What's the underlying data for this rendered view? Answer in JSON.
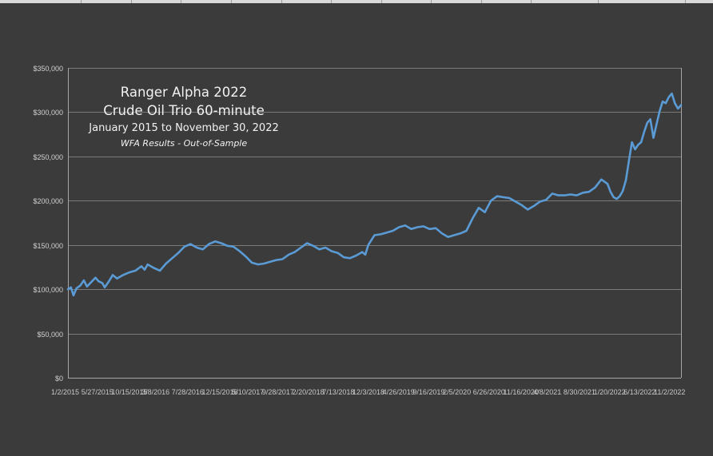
{
  "chart_data": {
    "type": "line",
    "title_lines": [
      "Ranger Alpha 2022",
      "Crude Oil Trio 60-minute",
      "January 2015 to November 30, 2022",
      "WFA Results - Out-of-Sample"
    ],
    "ylim": [
      0,
      350000
    ],
    "y_ticks": [
      0,
      50000,
      100000,
      150000,
      200000,
      250000,
      300000,
      350000
    ],
    "y_tick_labels": [
      "$0",
      "$50,000",
      "$100,000",
      "$150,000",
      "$200,000",
      "$250,000",
      "$300,000",
      "$350,000"
    ],
    "x_tick_labels": [
      "1/2/2015",
      "5/27/2015",
      "10/15/2015",
      "3/8/2016",
      "7/28/2016",
      "12/15/2016",
      "5/10/2017",
      "9/28/2017",
      "2/20/2018",
      "7/13/2018",
      "12/3/2018",
      "4/26/2019",
      "9/16/2019",
      "2/5/2020",
      "6/26/2020",
      "11/16/2020",
      "4/8/2021",
      "8/30/2021",
      "1/20/2022",
      "6/13/2022",
      "11/2/2022"
    ],
    "x_labels_overlapping": true,
    "grid": true,
    "line_color": "#5b9bd5",
    "series": [
      {
        "x_start": "2015-01-02",
        "x_end": "2022-11-30",
        "points": [
          [
            0.0,
            100000
          ],
          [
            0.005,
            102000
          ],
          [
            0.009,
            93000
          ],
          [
            0.014,
            101000
          ],
          [
            0.02,
            104000
          ],
          [
            0.026,
            110000
          ],
          [
            0.031,
            103000
          ],
          [
            0.038,
            108000
          ],
          [
            0.045,
            113000
          ],
          [
            0.05,
            109000
          ],
          [
            0.056,
            107000
          ],
          [
            0.06,
            102000
          ],
          [
            0.066,
            108000
          ],
          [
            0.073,
            116000
          ],
          [
            0.08,
            112000
          ],
          [
            0.09,
            116000
          ],
          [
            0.1,
            119000
          ],
          [
            0.11,
            121000
          ],
          [
            0.12,
            126000
          ],
          [
            0.125,
            122000
          ],
          [
            0.13,
            128000
          ],
          [
            0.14,
            124000
          ],
          [
            0.15,
            121000
          ],
          [
            0.16,
            129000
          ],
          [
            0.17,
            135000
          ],
          [
            0.18,
            141000
          ],
          [
            0.19,
            148000
          ],
          [
            0.2,
            151000
          ],
          [
            0.21,
            147000
          ],
          [
            0.22,
            145000
          ],
          [
            0.23,
            151000
          ],
          [
            0.24,
            154000
          ],
          [
            0.25,
            152000
          ],
          [
            0.26,
            149000
          ],
          [
            0.27,
            148000
          ],
          [
            0.28,
            143000
          ],
          [
            0.29,
            137000
          ],
          [
            0.3,
            130000
          ],
          [
            0.31,
            128000
          ],
          [
            0.32,
            129000
          ],
          [
            0.33,
            131000
          ],
          [
            0.34,
            133000
          ],
          [
            0.35,
            134000
          ],
          [
            0.36,
            139000
          ],
          [
            0.37,
            142000
          ],
          [
            0.38,
            147000
          ],
          [
            0.39,
            152000
          ],
          [
            0.4,
            149000
          ],
          [
            0.41,
            145000
          ],
          [
            0.42,
            147000
          ],
          [
            0.43,
            143000
          ],
          [
            0.44,
            141000
          ],
          [
            0.45,
            136000
          ],
          [
            0.46,
            135000
          ],
          [
            0.47,
            138000
          ],
          [
            0.48,
            142000
          ],
          [
            0.485,
            139000
          ],
          [
            0.49,
            150000
          ],
          [
            0.5,
            161000
          ],
          [
            0.51,
            162000
          ],
          [
            0.52,
            164000
          ],
          [
            0.53,
            166000
          ],
          [
            0.54,
            170000
          ],
          [
            0.55,
            172000
          ],
          [
            0.56,
            168000
          ],
          [
            0.57,
            170000
          ],
          [
            0.58,
            171000
          ],
          [
            0.59,
            168000
          ],
          [
            0.6,
            169000
          ],
          [
            0.61,
            163000
          ],
          [
            0.62,
            159000
          ],
          [
            0.63,
            161000
          ],
          [
            0.64,
            163000
          ],
          [
            0.65,
            166000
          ],
          [
            0.66,
            180000
          ],
          [
            0.67,
            192000
          ],
          [
            0.68,
            187000
          ],
          [
            0.69,
            200000
          ],
          [
            0.7,
            205000
          ],
          [
            0.71,
            204000
          ],
          [
            0.72,
            203000
          ],
          [
            0.73,
            199000
          ],
          [
            0.74,
            195000
          ],
          [
            0.75,
            190000
          ],
          [
            0.76,
            194000
          ],
          [
            0.77,
            199000
          ],
          [
            0.78,
            201000
          ],
          [
            0.79,
            208000
          ],
          [
            0.8,
            206000
          ],
          [
            0.81,
            206000
          ],
          [
            0.82,
            207000
          ],
          [
            0.83,
            206000
          ],
          [
            0.84,
            209000
          ],
          [
            0.85,
            210000
          ],
          [
            0.86,
            215000
          ],
          [
            0.87,
            224000
          ],
          [
            0.88,
            219000
          ],
          [
            0.885,
            210000
          ],
          [
            0.89,
            204000
          ],
          [
            0.895,
            202000
          ],
          [
            0.9,
            205000
          ],
          [
            0.905,
            211000
          ],
          [
            0.91,
            223000
          ],
          [
            0.915,
            245000
          ],
          [
            0.92,
            266000
          ],
          [
            0.925,
            258000
          ],
          [
            0.93,
            263000
          ],
          [
            0.935,
            266000
          ],
          [
            0.94,
            278000
          ],
          [
            0.945,
            288000
          ],
          [
            0.95,
            292000
          ],
          [
            0.955,
            271000
          ],
          [
            0.96,
            286000
          ],
          [
            0.965,
            301000
          ],
          [
            0.97,
            312000
          ],
          [
            0.975,
            310000
          ],
          [
            0.98,
            317000
          ],
          [
            0.985,
            321000
          ],
          [
            0.99,
            310000
          ],
          [
            0.995,
            304000
          ],
          [
            1.0,
            308000
          ]
        ]
      }
    ]
  }
}
